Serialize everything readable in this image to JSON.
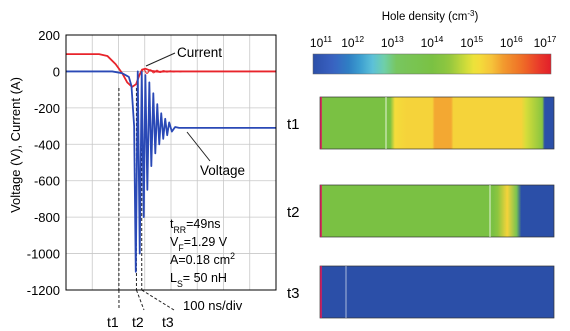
{
  "chart_data": [
    {
      "type": "line",
      "xlabel": "",
      "ylabel": "Voltage (V), Current (A)",
      "ylim": [
        -1200,
        200
      ],
      "yticks": [
        200,
        0,
        -200,
        -400,
        -600,
        -800,
        -1000,
        -1200
      ],
      "grid": true,
      "time_scale_label": "100 ns/div",
      "x_unit": "ns",
      "x_range": [
        -80,
        555
      ],
      "markers": [
        {
          "label": "t1",
          "x": 80
        },
        {
          "label": "t2",
          "x": 133
        },
        {
          "label": "t3",
          "x": 149
        }
      ],
      "series": [
        {
          "name": "Current",
          "color": "#e8242b",
          "x": [
            -80,
            20,
            45,
            70,
            90,
            105,
            120,
            132,
            142,
            150,
            160,
            170,
            180,
            190,
            200,
            220,
            260,
            555
          ],
          "y": [
            95,
            95,
            85,
            40,
            -10,
            -60,
            -85,
            -70,
            -20,
            10,
            15,
            8,
            3,
            0,
            -2,
            0,
            0,
            0
          ]
        },
        {
          "name": "Voltage",
          "color": "#2a49b6",
          "x": [
            -80,
            20,
            60,
            90,
            110,
            118,
            126,
            131,
            137,
            143,
            149,
            155,
            160,
            166,
            172,
            178,
            184,
            190,
            196,
            202,
            208,
            214,
            220,
            226,
            232,
            240,
            250,
            262,
            300,
            400,
            555
          ],
          "y": [
            0,
            0,
            0,
            -10,
            -30,
            -80,
            -300,
            -1100,
            0,
            -1000,
            0,
            -800,
            -20,
            -650,
            -60,
            -520,
            -120,
            -450,
            -180,
            -400,
            -230,
            -370,
            -260,
            -350,
            -280,
            -330,
            -305,
            -310,
            -310,
            -310,
            -310
          ]
        }
      ],
      "annotations": [
        "t_RR=49ns",
        "V_F=1.29 V",
        "A=0.18 cm2",
        "L_S= 50 nH"
      ]
    },
    {
      "type": "heatmap",
      "title": "Hole density (cm-3)",
      "colorbar_ticks": [
        "10^11",
        "10^12",
        "10^13",
        "10^14",
        "10^15",
        "10^16",
        "10^17"
      ],
      "colorbar_range_log10": [
        11,
        17
      ],
      "rows": [
        {
          "label": "t1",
          "log10_profile": [
            {
              "pos": 0.0,
              "v": 16.9
            },
            {
              "pos": 0.01,
              "v": 14.0
            },
            {
              "pos": 0.3,
              "v": 14.0
            },
            {
              "pos": 0.32,
              "v": 15.2
            },
            {
              "pos": 0.37,
              "v": 15.3
            },
            {
              "pos": 0.48,
              "v": 15.3
            },
            {
              "pos": 0.49,
              "v": 15.7
            },
            {
              "pos": 0.56,
              "v": 15.7
            },
            {
              "pos": 0.57,
              "v": 15.3
            },
            {
              "pos": 0.86,
              "v": 15.3
            },
            {
              "pos": 0.88,
              "v": 14.9
            },
            {
              "pos": 0.95,
              "v": 14.3
            },
            {
              "pos": 0.96,
              "v": 11.0
            },
            {
              "pos": 1.0,
              "v": 11.0
            }
          ]
        },
        {
          "label": "t2",
          "log10_profile": [
            {
              "pos": 0.0,
              "v": 16.9
            },
            {
              "pos": 0.01,
              "v": 14.0
            },
            {
              "pos": 0.74,
              "v": 14.0
            },
            {
              "pos": 0.76,
              "v": 14.4
            },
            {
              "pos": 0.8,
              "v": 15.3
            },
            {
              "pos": 0.84,
              "v": 13.6
            },
            {
              "pos": 0.86,
              "v": 11.0
            },
            {
              "pos": 1.0,
              "v": 11.0
            }
          ]
        },
        {
          "label": "t3",
          "log10_profile": [
            {
              "pos": 0.0,
              "v": 16.9
            },
            {
              "pos": 0.01,
              "v": 11.0
            },
            {
              "pos": 1.0,
              "v": 11.0
            }
          ]
        }
      ]
    }
  ]
}
